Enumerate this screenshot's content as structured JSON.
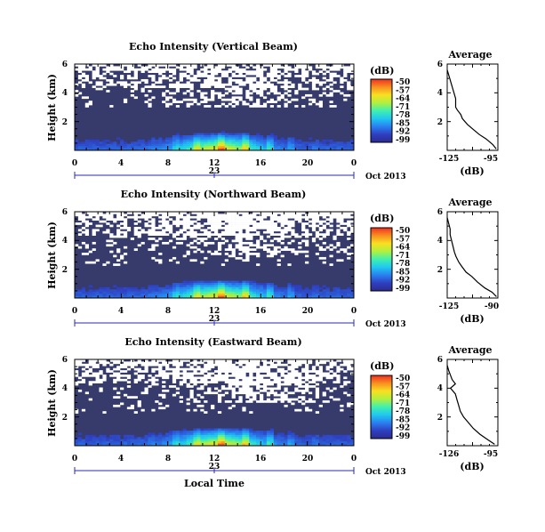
{
  "figure": {
    "date_label": "Oct 2013",
    "day_label": "23",
    "xlabel": "Local Time"
  },
  "colorbar": {
    "unit": "(dB)",
    "tick_labels": [
      "-50",
      "-57",
      "-64",
      "-71",
      "-78",
      "-85",
      "-92",
      "-99"
    ],
    "min": -99,
    "max": -50,
    "stops": [
      "#2b2b8f",
      "#2f3fc0",
      "#2a7ff0",
      "#1fc8f0",
      "#40f0b0",
      "#b0f040",
      "#f8e020",
      "#f89020",
      "#f03020"
    ]
  },
  "chart_data": [
    {
      "type": "heatmap",
      "title": "Echo Intensity (Vertical Beam)",
      "ylabel": "Height (km)",
      "xlabel": "",
      "x_ticks": [
        "0",
        "4",
        "8",
        "12",
        "16",
        "20",
        "0"
      ],
      "y_ticks": [
        "6",
        "4",
        "2"
      ],
      "xlim": [
        0,
        24
      ],
      "ylim": [
        0,
        6
      ],
      "no_data_color": "#ffffff",
      "background_color": "#363b6c"
    },
    {
      "type": "line",
      "title": "Average",
      "xlabel": "(dB)",
      "x_ticks": [
        "-125",
        "-95"
      ],
      "y_ticks": [
        "6",
        "4",
        "2"
      ],
      "xlim": [
        -125,
        -95
      ],
      "ylim": [
        0,
        6
      ],
      "x": [
        -125,
        -124,
        -123,
        -122,
        -121,
        -120,
        -120,
        -119,
        -117,
        -116,
        -113,
        -110,
        -106,
        -102,
        -98,
        -96
      ],
      "y": [
        5.6,
        5.2,
        4.8,
        4.4,
        4.0,
        3.6,
        3.0,
        2.8,
        2.5,
        2.2,
        1.8,
        1.5,
        1.1,
        0.8,
        0.4,
        0.1
      ]
    },
    {
      "type": "heatmap",
      "title": "Echo Intensity (Northward Beam)",
      "ylabel": "Height (km)",
      "xlabel": "",
      "x_ticks": [
        "0",
        "4",
        "8",
        "12",
        "16",
        "20",
        "0"
      ],
      "y_ticks": [
        "6",
        "4",
        "2"
      ],
      "xlim": [
        0,
        24
      ],
      "ylim": [
        0,
        6
      ],
      "no_data_color": "#ffffff",
      "background_color": "#363b6c"
    },
    {
      "type": "line",
      "title": "Average",
      "xlabel": "(dB)",
      "x_ticks": [
        "-125",
        "-90"
      ],
      "y_ticks": [
        "6",
        "4",
        "2"
      ],
      "xlim": [
        -125,
        -90
      ],
      "ylim": [
        0,
        6
      ],
      "x": [
        -125,
        -124,
        -123,
        -123,
        -122,
        -121,
        -120,
        -119,
        -117,
        -115,
        -112,
        -108,
        -104,
        -99,
        -94,
        -91
      ],
      "y": [
        5.6,
        5.2,
        4.8,
        4.4,
        4.0,
        3.6,
        3.2,
        2.9,
        2.5,
        2.2,
        1.8,
        1.5,
        1.1,
        0.7,
        0.4,
        0.1
      ]
    },
    {
      "type": "heatmap",
      "title": "Echo Intensity (Eastward Beam)",
      "ylabel": "Height (km)",
      "xlabel": "Local Time",
      "x_ticks": [
        "0",
        "4",
        "8",
        "12",
        "16",
        "20",
        "0"
      ],
      "y_ticks": [
        "6",
        "4",
        "2"
      ],
      "xlim": [
        0,
        24
      ],
      "ylim": [
        0,
        6
      ],
      "no_data_color": "#ffffff",
      "background_color": "#363b6c"
    },
    {
      "type": "line",
      "title": "Average",
      "xlabel": "(dB)",
      "x_ticks": [
        "-126",
        "-95"
      ],
      "y_ticks": [
        "6",
        "4",
        "2"
      ],
      "xlim": [
        -126,
        -95
      ],
      "ylim": [
        0,
        6
      ],
      "x": [
        -126,
        -125,
        -124,
        -123,
        -121,
        -124,
        -121,
        -120,
        -119,
        -118,
        -116,
        -113,
        -110,
        -106,
        -101,
        -97
      ],
      "y": [
        5.6,
        5.2,
        4.9,
        4.6,
        4.3,
        4.0,
        3.6,
        3.2,
        2.8,
        2.4,
        2.0,
        1.6,
        1.2,
        0.8,
        0.4,
        0.1
      ]
    }
  ]
}
